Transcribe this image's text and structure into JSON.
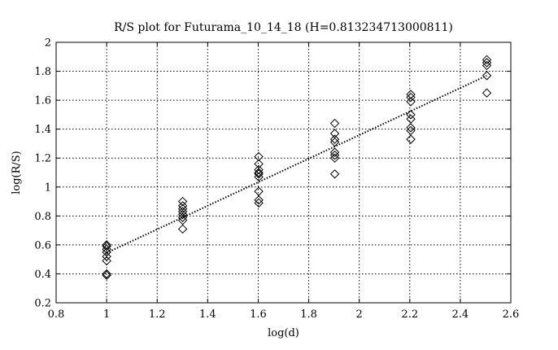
{
  "chart_data": {
    "type": "scatter",
    "title": "R/S plot for Futurama_10_14_18 (H=0.813234713000811)",
    "xlabel": "log(d)",
    "ylabel": "log(R/S)",
    "xlim": [
      0.8,
      2.6
    ],
    "ylim": [
      0.2,
      2.0
    ],
    "xticks": [
      "0.8",
      "1",
      "1.2",
      "1.4",
      "1.6",
      "1.8",
      "2",
      "2.2",
      "2.4",
      "2.6"
    ],
    "yticks": [
      "0.2",
      "0.4",
      "0.6",
      "0.8",
      "1",
      "1.2",
      "1.4",
      "1.6",
      "1.8",
      "2"
    ],
    "grid": true,
    "marker": "diamond",
    "series": [
      {
        "points": [
          [
            1.0,
            0.39
          ],
          [
            1.0,
            0.4
          ],
          [
            1.0,
            0.49
          ],
          [
            1.0,
            0.52
          ],
          [
            1.0,
            0.55
          ],
          [
            1.0,
            0.57
          ],
          [
            1.0,
            0.59
          ],
          [
            1.0,
            0.6
          ],
          [
            1.301,
            0.71
          ],
          [
            1.301,
            0.77
          ],
          [
            1.301,
            0.79
          ],
          [
            1.301,
            0.81
          ],
          [
            1.301,
            0.83
          ],
          [
            1.301,
            0.85
          ],
          [
            1.301,
            0.87
          ],
          [
            1.301,
            0.9
          ],
          [
            1.602,
            0.89
          ],
          [
            1.602,
            0.91
          ],
          [
            1.602,
            0.97
          ],
          [
            1.602,
            1.07
          ],
          [
            1.602,
            1.09
          ],
          [
            1.602,
            1.1
          ],
          [
            1.602,
            1.12
          ],
          [
            1.602,
            1.16
          ],
          [
            1.602,
            1.21
          ],
          [
            1.903,
            1.09
          ],
          [
            1.903,
            1.2
          ],
          [
            1.903,
            1.22
          ],
          [
            1.903,
            1.24
          ],
          [
            1.903,
            1.31
          ],
          [
            1.903,
            1.33
          ],
          [
            1.903,
            1.37
          ],
          [
            1.903,
            1.44
          ],
          [
            2.204,
            1.33
          ],
          [
            2.204,
            1.39
          ],
          [
            2.204,
            1.41
          ],
          [
            2.204,
            1.47
          ],
          [
            2.204,
            1.5
          ],
          [
            2.204,
            1.59
          ],
          [
            2.204,
            1.62
          ],
          [
            2.204,
            1.64
          ],
          [
            2.505,
            1.65
          ],
          [
            2.505,
            1.77
          ],
          [
            2.505,
            1.84
          ],
          [
            2.505,
            1.86
          ],
          [
            2.505,
            1.88
          ]
        ]
      }
    ],
    "fit_line": {
      "x": [
        1.0,
        2.505
      ],
      "y": [
        0.545,
        1.77
      ],
      "style": "dotted"
    }
  }
}
